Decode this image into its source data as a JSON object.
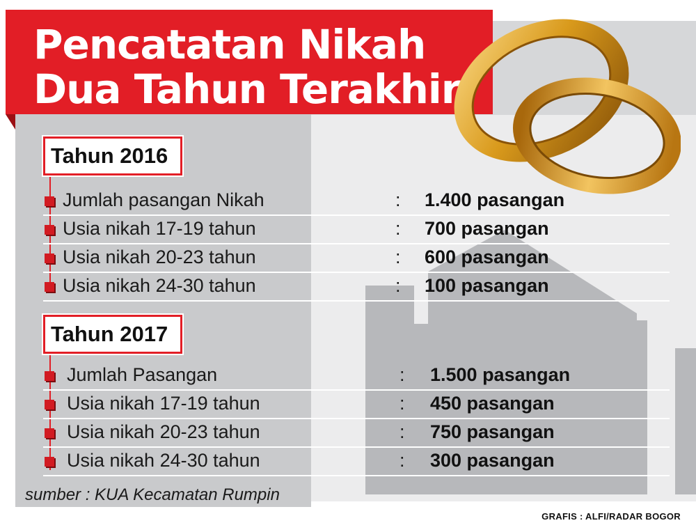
{
  "title": "Pencatatan Nikah\nDua Tahun Terakhir",
  "sections": [
    {
      "year": "Tahun 2016",
      "rows": [
        {
          "label": "Jumlah pasangan Nikah",
          "colon": ":",
          "value": "1.400 pasangan"
        },
        {
          "label": "Usia nikah 17-19 tahun",
          "colon": ":",
          "value": "700 pasangan"
        },
        {
          "label": "Usia nikah 20-23 tahun",
          "colon": ":",
          "value": "600 pasangan"
        },
        {
          "label": "Usia nikah 24-30 tahun",
          "colon": ":",
          "value": "100 pasangan"
        }
      ]
    },
    {
      "year": "Tahun 2017",
      "rows": [
        {
          "label": "Jumlah Pasangan",
          "colon": ":",
          "value": "1.500 pasangan"
        },
        {
          "label": "Usia nikah 17-19 tahun",
          "colon": ":",
          "value": "450 pasangan"
        },
        {
          "label": "Usia nikah 20-23 tahun",
          "colon": ":",
          "value": "750 pasangan"
        },
        {
          "label": "Usia nikah 24-30 tahun",
          "colon": ":",
          "value": "300 pasangan"
        }
      ]
    }
  ],
  "source": "sumber : KUA Kecamatan Rumpin",
  "credit": "GRAFIS : ALFI/RADAR BOGOR",
  "colors": {
    "accent": "#e21e26",
    "panel": "#c9cacc",
    "gold": "#d99a1c"
  },
  "icons": [
    "wedding-rings-icon",
    "house-silhouette-icon",
    "bullet-square-icon"
  ]
}
